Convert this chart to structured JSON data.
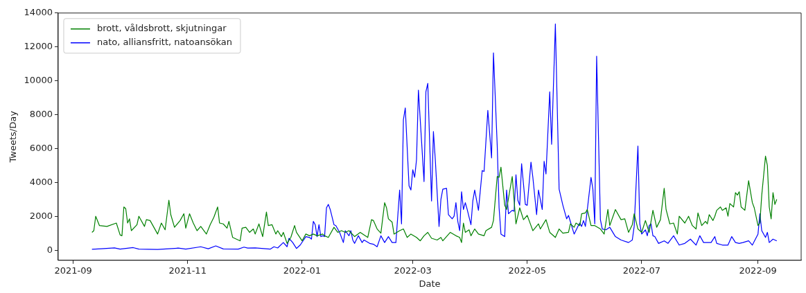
{
  "chart_data": {
    "type": "line",
    "xlabel": "Date",
    "ylabel": "Tweets/Day",
    "xlim": [
      "2021-08-24",
      "2022-09-24"
    ],
    "ylim": [
      -600,
      14000
    ],
    "xticks": [
      {
        "value": "2021-09-01",
        "label": "2021-09"
      },
      {
        "value": "2021-11-01",
        "label": "2021-11"
      },
      {
        "value": "2022-01-01",
        "label": "2022-01"
      },
      {
        "value": "2022-03-01",
        "label": "2022-03"
      },
      {
        "value": "2022-05-01",
        "label": "2022-05"
      },
      {
        "value": "2022-07-01",
        "label": "2022-07"
      },
      {
        "value": "2022-09-01",
        "label": "2022-09"
      }
    ],
    "yticks": [
      0,
      2000,
      4000,
      6000,
      8000,
      10000,
      12000,
      14000
    ],
    "grid": false,
    "legend": "top left",
    "marker": "none",
    "line_style": "solid",
    "series": [
      {
        "name": "brott, våldsbrott, skjutningar",
        "color": "#008000",
        "x": [
          "2021-09-11",
          "2021-09-12",
          "2021-09-13",
          "2021-09-15",
          "2021-09-19",
          "2021-09-24",
          "2021-09-26",
          "2021-09-27",
          "2021-09-28",
          "2021-09-29",
          "2021-09-30",
          "2021-10-01",
          "2021-10-02",
          "2021-10-05",
          "2021-10-06",
          "2021-10-09",
          "2021-10-10",
          "2021-10-12",
          "2021-10-14",
          "2021-10-16",
          "2021-10-18",
          "2021-10-20",
          "2021-10-22",
          "2021-10-23",
          "2021-10-25",
          "2021-10-28",
          "2021-10-30",
          "2021-10-31",
          "2021-11-02",
          "2021-11-04",
          "2021-11-06",
          "2021-11-08",
          "2021-11-11",
          "2021-11-13",
          "2021-11-15",
          "2021-11-17",
          "2021-11-18",
          "2021-11-20",
          "2021-11-22",
          "2021-11-23",
          "2021-11-25",
          "2021-11-29",
          "2021-11-30",
          "2021-12-02",
          "2021-12-04",
          "2021-12-06",
          "2021-12-07",
          "2021-12-09",
          "2021-12-11",
          "2021-12-13",
          "2021-12-14",
          "2021-12-16",
          "2021-12-18",
          "2021-12-19",
          "2021-12-21",
          "2021-12-22",
          "2021-12-24",
          "2021-12-26",
          "2021-12-28",
          "2021-12-29",
          "2022-01-01",
          "2022-01-03",
          "2022-01-05",
          "2022-01-07",
          "2022-01-09",
          "2022-01-12",
          "2022-01-13",
          "2022-01-15",
          "2022-01-18",
          "2022-01-20",
          "2022-01-22",
          "2022-01-24",
          "2022-01-26",
          "2022-01-29",
          "2022-02-01",
          "2022-02-05",
          "2022-02-07",
          "2022-02-08",
          "2022-02-10",
          "2022-02-12",
          "2022-02-14",
          "2022-02-15",
          "2022-02-16",
          "2022-02-18",
          "2022-02-19",
          "2022-02-22",
          "2022-02-24",
          "2022-02-26",
          "2022-02-28",
          "2022-03-03",
          "2022-03-05",
          "2022-03-07",
          "2022-03-09",
          "2022-03-11",
          "2022-03-14",
          "2022-03-16",
          "2022-03-17",
          "2022-03-21",
          "2022-03-24",
          "2022-03-26",
          "2022-03-27",
          "2022-03-28",
          "2022-03-29",
          "2022-03-31",
          "2022-04-01",
          "2022-04-03",
          "2022-04-05",
          "2022-04-08",
          "2022-04-09",
          "2022-04-12",
          "2022-04-13",
          "2022-04-15",
          "2022-04-16",
          "2022-04-17",
          "2022-04-19",
          "2022-04-20",
          "2022-04-23",
          "2022-04-25",
          "2022-04-27",
          "2022-04-29",
          "2022-05-01",
          "2022-05-04",
          "2022-05-07",
          "2022-05-08",
          "2022-05-11",
          "2022-05-13",
          "2022-05-16",
          "2022-05-18",
          "2022-05-20",
          "2022-05-23",
          "2022-05-24",
          "2022-05-26",
          "2022-05-27",
          "2022-05-29",
          "2022-05-30",
          "2022-06-01",
          "2022-06-02",
          "2022-06-04",
          "2022-06-06",
          "2022-06-09",
          "2022-06-11",
          "2022-06-13",
          "2022-06-14",
          "2022-06-17",
          "2022-06-20",
          "2022-06-22",
          "2022-06-24",
          "2022-06-26",
          "2022-06-27",
          "2022-06-29",
          "2022-07-01",
          "2022-07-03",
          "2022-07-05",
          "2022-07-07",
          "2022-07-09",
          "2022-07-11",
          "2022-07-13",
          "2022-07-14",
          "2022-07-16",
          "2022-07-18",
          "2022-07-20",
          "2022-07-21",
          "2022-07-24",
          "2022-07-26",
          "2022-07-28",
          "2022-07-30",
          "2022-07-31",
          "2022-08-02",
          "2022-08-04",
          "2022-08-05",
          "2022-08-06",
          "2022-08-08",
          "2022-08-09",
          "2022-08-10",
          "2022-08-12",
          "2022-08-13",
          "2022-08-15",
          "2022-08-16",
          "2022-08-17",
          "2022-08-19",
          "2022-08-20",
          "2022-08-21",
          "2022-08-22",
          "2022-08-23",
          "2022-08-25",
          "2022-08-27",
          "2022-08-29",
          "2022-08-30",
          "2022-09-01",
          "2022-09-02",
          "2022-09-03",
          "2022-09-05",
          "2022-09-06",
          "2022-09-07",
          "2022-09-08",
          "2022-09-09",
          "2022-09-10",
          "2022-09-11"
        ],
        "values": [
          1050,
          1150,
          2000,
          1450,
          1400,
          1600,
          900,
          850,
          2550,
          2450,
          1600,
          1850,
          1150,
          1500,
          2000,
          1400,
          1800,
          1750,
          1350,
          950,
          1600,
          1200,
          2950,
          2100,
          1350,
          1750,
          2150,
          1300,
          2150,
          1600,
          1150,
          1400,
          950,
          1500,
          1950,
          2550,
          1600,
          1550,
          1300,
          1700,
          750,
          550,
          1300,
          1350,
          1050,
          1250,
          950,
          1550,
          800,
          2250,
          1450,
          1500,
          950,
          1150,
          800,
          1050,
          400,
          750,
          1450,
          1050,
          550,
          950,
          850,
          950,
          850,
          950,
          850,
          750,
          1350,
          1050,
          1150,
          1050,
          1150,
          800,
          1050,
          750,
          1800,
          1750,
          1250,
          1000,
          2800,
          2500,
          1850,
          1650,
          950,
          1150,
          1250,
          750,
          950,
          750,
          550,
          850,
          1050,
          700,
          600,
          750,
          550,
          1050,
          850,
          750,
          450,
          1600,
          1050,
          1200,
          850,
          1250,
          950,
          850,
          1150,
          1350,
          1750,
          4350,
          4300,
          4900,
          2650,
          2400,
          4350,
          1550,
          2500,
          1800,
          2050,
          1150,
          1550,
          1250,
          1800,
          1050,
          750,
          1250,
          1000,
          1050,
          1550,
          1350,
          1600,
          1450,
          2150,
          2200,
          2400,
          1450,
          1450,
          1250,
          950,
          2400,
          1450,
          2400,
          1800,
          1850,
          1050,
          1500,
          2150,
          1250,
          1050,
          1750,
          1050,
          2350,
          1350,
          1800,
          3650,
          2400,
          1550,
          1600,
          950,
          2000,
          1600,
          2000,
          1450,
          1250,
          2200,
          1450,
          1700,
          1550,
          2100,
          1750,
          2000,
          2350,
          2550,
          2350,
          2500,
          2000,
          2750,
          2550,
          3400,
          3250,
          3450,
          2550,
          2350,
          4100,
          2800,
          2500,
          1450,
          1600,
          3250,
          5550,
          5000,
          2550,
          1850,
          3400,
          2700,
          3000
        ]
      },
      {
        "name": "nato, alliansfritt, natoansökan",
        "color": "#0000ff",
        "x": [
          "2021-09-11",
          "2021-09-16",
          "2021-09-23",
          "2021-09-26",
          "2021-10-03",
          "2021-10-06",
          "2021-10-16",
          "2021-10-27",
          "2021-10-31",
          "2021-11-08",
          "2021-11-12",
          "2021-11-16",
          "2021-11-20",
          "2021-11-28",
          "2021-12-01",
          "2021-12-03",
          "2021-12-07",
          "2021-12-15",
          "2021-12-17",
          "2021-12-19",
          "2021-12-22",
          "2021-12-24",
          "2021-12-25",
          "2021-12-27",
          "2021-12-29",
          "2021-12-31",
          "2022-01-03",
          "2022-01-05",
          "2022-01-06",
          "2022-01-07",
          "2022-01-08",
          "2022-01-09",
          "2022-01-10",
          "2022-01-11",
          "2022-01-12",
          "2022-01-13",
          "2022-01-14",
          "2022-01-15",
          "2022-01-16",
          "2022-01-18",
          "2022-01-19",
          "2022-01-21",
          "2022-01-23",
          "2022-01-24",
          "2022-01-26",
          "2022-01-27",
          "2022-01-28",
          "2022-01-29",
          "2022-01-31",
          "2022-02-02",
          "2022-02-03",
          "2022-02-06",
          "2022-02-08",
          "2022-02-10",
          "2022-02-12",
          "2022-02-14",
          "2022-02-16",
          "2022-02-18",
          "2022-02-20",
          "2022-02-22",
          "2022-02-23",
          "2022-02-24",
          "2022-02-25",
          "2022-02-27",
          "2022-02-28",
          "2022-03-01",
          "2022-03-02",
          "2022-03-03",
          "2022-03-04",
          "2022-03-07",
          "2022-03-08",
          "2022-03-09",
          "2022-03-11",
          "2022-03-12",
          "2022-03-13",
          "2022-03-15",
          "2022-03-16",
          "2022-03-17",
          "2022-03-19",
          "2022-03-20",
          "2022-03-22",
          "2022-03-23",
          "2022-03-24",
          "2022-03-25",
          "2022-03-26",
          "2022-03-27",
          "2022-03-28",
          "2022-03-29",
          "2022-03-30",
          "2022-04-01",
          "2022-04-02",
          "2022-04-03",
          "2022-04-05",
          "2022-04-07",
          "2022-04-08",
          "2022-04-10",
          "2022-04-12",
          "2022-04-13",
          "2022-04-15",
          "2022-04-16",
          "2022-04-17",
          "2022-04-19",
          "2022-04-20",
          "2022-04-21",
          "2022-04-23",
          "2022-04-24",
          "2022-04-25",
          "2022-04-26",
          "2022-04-27",
          "2022-04-28",
          "2022-04-30",
          "2022-05-01",
          "2022-05-03",
          "2022-05-04",
          "2022-05-06",
          "2022-05-07",
          "2022-05-09",
          "2022-05-10",
          "2022-05-11",
          "2022-05-13",
          "2022-05-14",
          "2022-05-16",
          "2022-05-18",
          "2022-05-20",
          "2022-05-22",
          "2022-05-23",
          "2022-05-26",
          "2022-05-28",
          "2022-05-29",
          "2022-05-30",
          "2022-05-31",
          "2022-06-01",
          "2022-06-04",
          "2022-06-05",
          "2022-06-06",
          "2022-06-07",
          "2022-06-09",
          "2022-06-10",
          "2022-06-12",
          "2022-06-14",
          "2022-06-17",
          "2022-06-20",
          "2022-06-24",
          "2022-06-26",
          "2022-06-27",
          "2022-06-29",
          "2022-06-30",
          "2022-07-01",
          "2022-07-03",
          "2022-07-04",
          "2022-07-05",
          "2022-07-06",
          "2022-07-07",
          "2022-07-08",
          "2022-07-10",
          "2022-07-13",
          "2022-07-15",
          "2022-07-18",
          "2022-07-21",
          "2022-07-24",
          "2022-07-27",
          "2022-07-30",
          "2022-08-01",
          "2022-08-03",
          "2022-08-05",
          "2022-08-07",
          "2022-08-09",
          "2022-08-10",
          "2022-08-13",
          "2022-08-16",
          "2022-08-18",
          "2022-08-20",
          "2022-08-22",
          "2022-08-24",
          "2022-08-27",
          "2022-08-29",
          "2022-09-01",
          "2022-09-02",
          "2022-09-03",
          "2022-09-05",
          "2022-09-06",
          "2022-09-07",
          "2022-09-09",
          "2022-09-11"
        ],
        "values": [
          50,
          80,
          130,
          60,
          150,
          60,
          40,
          120,
          60,
          200,
          80,
          250,
          70,
          60,
          180,
          120,
          130,
          60,
          200,
          130,
          450,
          200,
          700,
          450,
          100,
          300,
          800,
          750,
          650,
          1700,
          1500,
          800,
          1500,
          800,
          850,
          800,
          2500,
          2700,
          2400,
          1500,
          1450,
          1050,
          450,
          1150,
          850,
          1150,
          600,
          400,
          850,
          450,
          600,
          400,
          350,
          200,
          850,
          450,
          800,
          450,
          450,
          3550,
          1550,
          7700,
          8400,
          3800,
          3550,
          4750,
          4300,
          5350,
          9450,
          4050,
          9350,
          9850,
          2900,
          7000,
          5350,
          1400,
          3000,
          3600,
          3650,
          2100,
          1850,
          2000,
          2800,
          1700,
          1150,
          3450,
          2400,
          2800,
          2400,
          1500,
          2900,
          3550,
          2350,
          4700,
          4650,
          8250,
          5450,
          11650,
          6200,
          2500,
          950,
          800,
          3550,
          2150,
          2350,
          2300,
          4450,
          2950,
          2650,
          5100,
          2700,
          2650,
          5200,
          4300,
          2100,
          3550,
          2400,
          5250,
          4500,
          9350,
          6250,
          13350,
          3600,
          2650,
          1850,
          2050,
          950,
          1400,
          1600,
          1400,
          1750,
          1400,
          4300,
          3600,
          1550,
          11450,
          1800,
          1250,
          1200,
          1350,
          800,
          600,
          450,
          600,
          1400,
          6150,
          1550,
          950,
          1200,
          850,
          1450,
          1550,
          850,
          800,
          400,
          550,
          400,
          850,
          300,
          400,
          650,
          300,
          850,
          450,
          450,
          450,
          800,
          400,
          300,
          300,
          800,
          450,
          400,
          450,
          550,
          300,
          950,
          2150,
          1150,
          750,
          1050,
          450,
          650,
          550
        ]
      }
    ]
  }
}
